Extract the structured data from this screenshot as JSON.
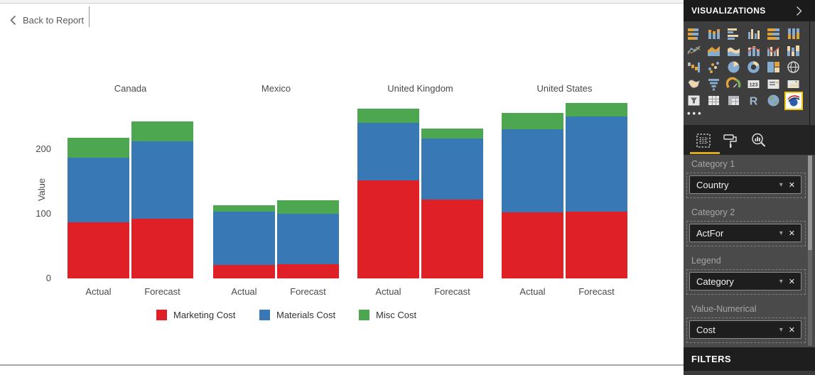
{
  "top_bar": {
    "back_label": "Back to Report"
  },
  "chart_data": {
    "type": "bar",
    "stacked": true,
    "title": "",
    "ylabel": "Value",
    "yticks": [
      0,
      100,
      200
    ],
    "ylim": [
      0,
      285
    ],
    "grid": false,
    "legend_position": "bottom",
    "groups": [
      "Canada",
      "Mexico",
      "United Kingdom",
      "United States"
    ],
    "x_labels": [
      "Actual",
      "Forecast"
    ],
    "series": [
      {
        "name": "Marketing Cost",
        "color": "#df2026",
        "values": [
          [
            87,
            92
          ],
          [
            21,
            22
          ],
          [
            152,
            122
          ],
          [
            102,
            103
          ]
        ]
      },
      {
        "name": "Materials Cost",
        "color": "#3878b5",
        "values": [
          [
            100,
            120
          ],
          [
            82,
            78
          ],
          [
            89,
            94
          ],
          [
            129,
            148
          ]
        ]
      },
      {
        "name": "Misc Cost",
        "color": "#4ca750",
        "values": [
          [
            31,
            31
          ],
          [
            10,
            21
          ],
          [
            22,
            16
          ],
          [
            25,
            20
          ]
        ]
      }
    ]
  },
  "panel": {
    "title": "VISUALIZATIONS",
    "expand_icon": "chevron-right-icon",
    "icons": [
      "stacked-bar-chart",
      "stacked-column-chart",
      "clustered-bar-chart",
      "clustered-column-chart",
      "100-stacked-bar-chart",
      "100-stacked-column-chart",
      "line-chart",
      "area-chart",
      "stacked-area-chart",
      "line-and-stacked-column-chart",
      "line-and-clustered-column-chart",
      "ribbon-chart",
      "waterfall-chart",
      "scatter-chart",
      "pie-chart",
      "donut-chart",
      "treemap",
      "map",
      "filled-map",
      "funnel",
      "gauge",
      "card",
      "multi-row-card",
      "kpi",
      "slicer",
      "table",
      "matrix",
      "r-script-visual",
      "arcgis-map",
      "forecast-custom-visual"
    ],
    "selected_icon": "forecast-custom-visual",
    "more_label": "•••",
    "tabs": [
      "fields",
      "format",
      "analytics"
    ],
    "selected_tab": "fields",
    "wells": [
      {
        "label": "Category 1",
        "value": "Country"
      },
      {
        "label": "Category 2",
        "value": "ActFor"
      },
      {
        "label": "Legend",
        "value": "Category"
      },
      {
        "label": "Value-Numerical",
        "value": "Cost"
      }
    ],
    "filters_title": "FILTERS"
  }
}
